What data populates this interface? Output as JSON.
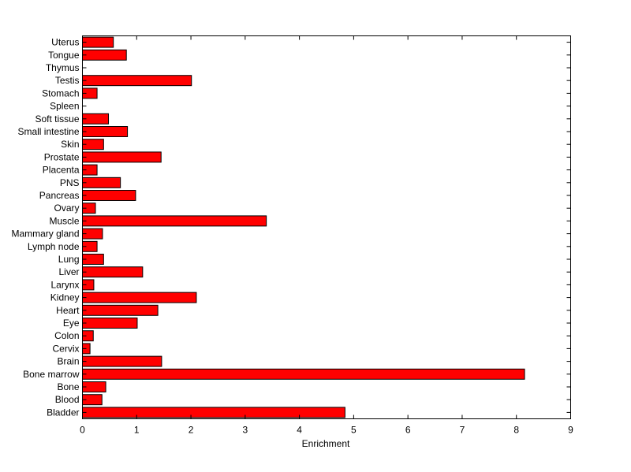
{
  "chart_data": {
    "type": "bar",
    "orientation": "horizontal",
    "title": "",
    "xlabel": "Enrichment",
    "ylabel": "",
    "xlim": [
      0,
      9
    ],
    "x_ticks": [
      0,
      1,
      2,
      3,
      4,
      5,
      6,
      7,
      8,
      9
    ],
    "grid": false,
    "legend": "none",
    "bar_color": "#ff0000",
    "bar_edge_color": "#000000",
    "categories": [
      "Uterus",
      "Tongue",
      "Thymus",
      "Testis",
      "Stomach",
      "Spleen",
      "Soft tissue",
      "Small intestine",
      "Skin",
      "Prostate",
      "Placenta",
      "PNS",
      "Pancreas",
      "Ovary",
      "Muscle",
      "Mammary gland",
      "Lymph node",
      "Lung",
      "Liver",
      "Larynx",
      "Kidney",
      "Heart",
      "Eye",
      "Colon",
      "Cervix",
      "Brain",
      "Bone marrow",
      "Bone",
      "Blood",
      "Bladder"
    ],
    "values": [
      0.57,
      0.81,
      0.0,
      2.01,
      0.27,
      0.0,
      0.48,
      0.83,
      0.39,
      1.45,
      0.27,
      0.7,
      0.98,
      0.24,
      3.39,
      0.37,
      0.27,
      0.39,
      1.11,
      0.21,
      2.1,
      1.39,
      1.01,
      0.2,
      0.14,
      1.46,
      8.15,
      0.43,
      0.36,
      4.84
    ]
  }
}
